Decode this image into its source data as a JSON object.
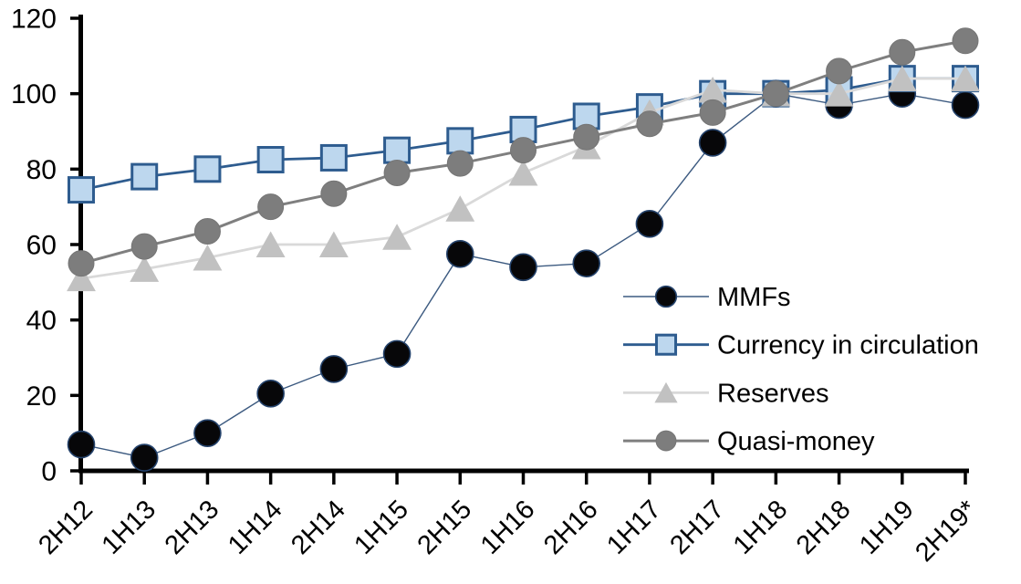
{
  "chart_data": {
    "type": "line",
    "title": "",
    "categories": [
      "2H12",
      "1H13",
      "2H13",
      "1H14",
      "2H14",
      "1H15",
      "2H15",
      "1H16",
      "2H16",
      "1H17",
      "2H17",
      "1H18",
      "2H18",
      "1H19",
      "2H19*"
    ],
    "series": [
      {
        "name": "MMFs",
        "marker": "circle",
        "marker_fill": "#070709",
        "marker_stroke": "#24426b",
        "marker_stroke_width": 1.6,
        "line_color": "#3c5a80",
        "line_width": 1.4,
        "marker_size": 29,
        "values": [
          7,
          3.5,
          10,
          20.5,
          27,
          31,
          57.5,
          54,
          55,
          65.5,
          87,
          100,
          97,
          100,
          97
        ]
      },
      {
        "name": "Currency in circulation",
        "marker": "square",
        "marker_fill": "#bdd7ee",
        "marker_stroke": "#2e5c8f",
        "marker_stroke_width": 3,
        "line_color": "#2e5c8f",
        "line_width": 2.8,
        "marker_size": 27,
        "values": [
          74.5,
          78,
          80,
          82.5,
          83,
          85,
          87.5,
          90.5,
          94,
          96.5,
          100,
          100,
          101,
          104,
          104
        ]
      },
      {
        "name": "Reserves",
        "marker": "triangle",
        "marker_fill": "#c1c1c1",
        "marker_stroke": "#c1c1c1",
        "marker_stroke_width": 1,
        "line_color": "#d9d9d9",
        "line_width": 2.8,
        "marker_size": 29,
        "values": [
          51,
          53.5,
          56.5,
          60,
          60,
          62,
          69.5,
          79,
          86,
          95,
          101,
          100,
          100,
          104,
          104
        ]
      },
      {
        "name": "Quasi-money",
        "marker": "circle",
        "marker_fill": "#7d7d7d",
        "marker_stroke": "#757575",
        "marker_stroke_width": 1,
        "line_color": "#7f7f7f",
        "line_width": 3,
        "marker_size": 28,
        "values": [
          55,
          59.5,
          63.5,
          70,
          73.5,
          79,
          81.5,
          85,
          88.5,
          92,
          95,
          100,
          106,
          111,
          114
        ]
      }
    ],
    "y_axis": {
      "min": 0,
      "max": 120,
      "step": 20,
      "tick_labels": [
        "0",
        "20",
        "40",
        "60",
        "80",
        "100",
        "120"
      ]
    },
    "x_axis": {
      "label_rotation": -45
    },
    "legend": {
      "position": "inside-right",
      "entries": [
        "MMFs",
        "Currency in circulation",
        "Reserves",
        "Quasi-money"
      ]
    },
    "grid": false,
    "axis_color": "#000000",
    "text_color": "#000000",
    "background": "#ffffff"
  }
}
